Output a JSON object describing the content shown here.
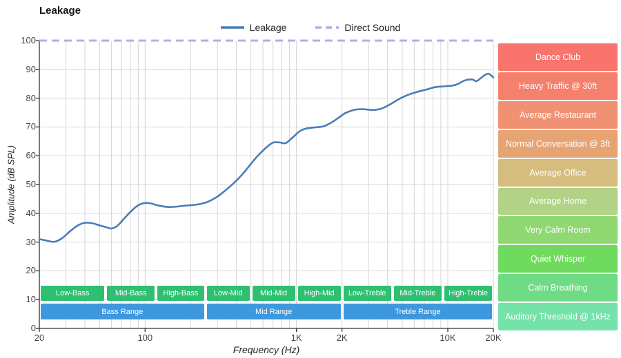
{
  "title": "Leakage",
  "legend": {
    "items": [
      {
        "label": "Leakage",
        "color": "#4a7cb8",
        "dashed": false
      },
      {
        "label": "Direct Sound",
        "color": "#a9b2ec",
        "dashed": true
      }
    ]
  },
  "axes": {
    "x_label": "Frequency (Hz)",
    "y_label": "Amplitude (dB SPL)",
    "x_ticks": [
      {
        "v": 20,
        "label": "20"
      },
      {
        "v": 100,
        "label": "100"
      },
      {
        "v": 1000,
        "label": "1K"
      },
      {
        "v": 2000,
        "label": "2K"
      },
      {
        "v": 10000,
        "label": "10K"
      },
      {
        "v": 20000,
        "label": "20K"
      }
    ],
    "y_ticks": [
      0,
      10,
      20,
      30,
      40,
      50,
      60,
      70,
      80,
      90,
      100
    ]
  },
  "chart_data": {
    "type": "line",
    "title": "Leakage",
    "xlabel": "Frequency (Hz)",
    "ylabel": "Amplitude (dB SPL)",
    "x_scale": "log",
    "xlim": [
      20,
      20000
    ],
    "ylim": [
      0,
      100
    ],
    "grid": true,
    "legend_position": "top",
    "series": [
      {
        "name": "Leakage",
        "style": "solid",
        "color": "#4a7cb8",
        "x": [
          20,
          22,
          25,
          28,
          32,
          36,
          40,
          45,
          50,
          55,
          60,
          65,
          70,
          80,
          90,
          100,
          110,
          120,
          140,
          160,
          180,
          200,
          230,
          260,
          300,
          340,
          380,
          430,
          480,
          530,
          580,
          630,
          680,
          720,
          780,
          850,
          950,
          1050,
          1150,
          1300,
          1500,
          1700,
          1900,
          2100,
          2400,
          2700,
          3000,
          3300,
          3700,
          4200,
          4800,
          5500,
          6300,
          7200,
          8200,
          9300,
          10500,
          11500,
          13000,
          14500,
          15500,
          17000,
          18500,
          20000
        ],
        "y": [
          31,
          30.6,
          30.1,
          31.2,
          33.8,
          35.8,
          36.7,
          36.5,
          35.8,
          35.2,
          34.7,
          35.5,
          37.2,
          40.5,
          42.8,
          43.6,
          43.4,
          42.8,
          42.2,
          42.3,
          42.6,
          42.8,
          43.2,
          44,
          45.8,
          48,
          50.2,
          53,
          56,
          58.8,
          61,
          62.8,
          64.2,
          64.7,
          64.6,
          64.4,
          66.5,
          68.5,
          69.4,
          69.8,
          70.2,
          71.5,
          73.2,
          74.8,
          75.9,
          76.2,
          76,
          75.9,
          76.5,
          78,
          79.8,
          81.2,
          82.2,
          83,
          83.8,
          84.1,
          84.3,
          84.8,
          86.2,
          86.5,
          85.9,
          87.5,
          88.5,
          87.2
        ]
      },
      {
        "name": "Direct Sound",
        "style": "dashed",
        "color": "#a9b2ec",
        "constant_y": 100
      }
    ]
  },
  "frequency_bands": {
    "sub_color": "#2fbf71",
    "range_color": "#3d98dd",
    "sub": [
      {
        "label": "Low-Bass",
        "from": 20,
        "to": 55
      },
      {
        "label": "Mid-Bass",
        "from": 55,
        "to": 118
      },
      {
        "label": "High-Bass",
        "from": 118,
        "to": 250
      },
      {
        "label": "Low-Mid",
        "from": 250,
        "to": 500
      },
      {
        "label": "Mid-Mid",
        "from": 500,
        "to": 1000
      },
      {
        "label": "High-Mid",
        "from": 1000,
        "to": 2000
      },
      {
        "label": "Low-Treble",
        "from": 2000,
        "to": 4300
      },
      {
        "label": "Mid-Treble",
        "from": 4300,
        "to": 9300
      },
      {
        "label": "High-Treble",
        "from": 9300,
        "to": 20000
      }
    ],
    "ranges": [
      {
        "label": "Bass Range",
        "from": 20,
        "to": 250
      },
      {
        "label": "Mid Range",
        "from": 250,
        "to": 2000
      },
      {
        "label": "Treble Range",
        "from": 2000,
        "to": 20000
      }
    ]
  },
  "noise_levels": [
    {
      "label": "Dance Club",
      "color": "#f9746c"
    },
    {
      "label": "Heavy Traffic @ 30ft",
      "color": "#f5806d"
    },
    {
      "label": "Average Restaurant",
      "color": "#f09173"
    },
    {
      "label": "Normal Conversation @ 3ft",
      "color": "#e7a473"
    },
    {
      "label": "Average Office",
      "color": "#d4bd7f"
    },
    {
      "label": "Average Home",
      "color": "#b2d287"
    },
    {
      "label": "Very Calm Room",
      "color": "#8fd872"
    },
    {
      "label": "Quiet Whisper",
      "color": "#70da5e"
    },
    {
      "label": "Calm Breathing",
      "color": "#6fdc85"
    },
    {
      "label": "Auditory Threshold @ 1kHz",
      "color": "#75e2a9"
    }
  ]
}
